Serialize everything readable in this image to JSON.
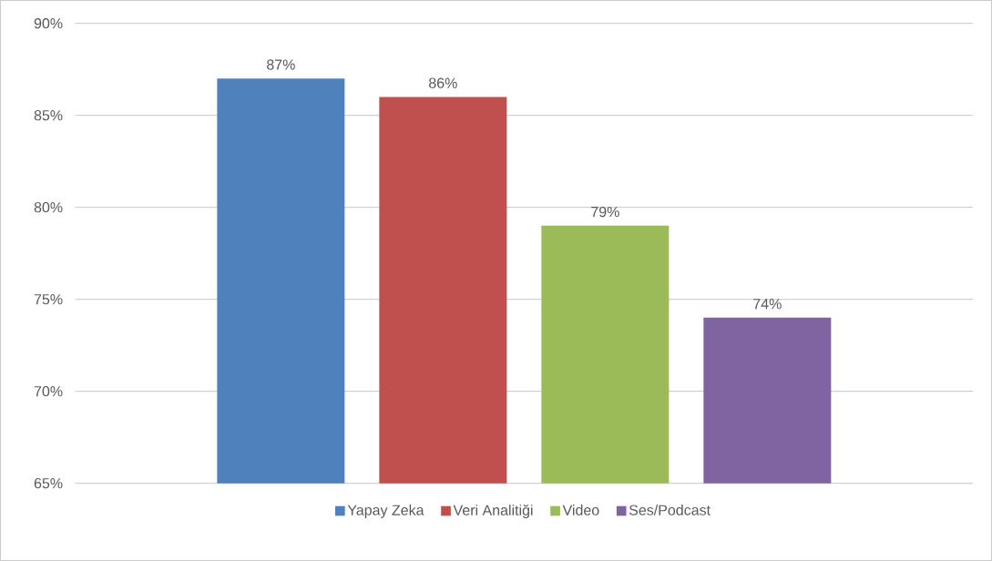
{
  "chart_data": {
    "type": "bar",
    "categories": [
      null
    ],
    "series": [
      {
        "name": "Yapay Zeka",
        "color": "#4f81bd",
        "values": [
          87
        ],
        "value_labels": [
          "87%"
        ]
      },
      {
        "name": "Veri Analitiği",
        "color": "#c0504d",
        "values": [
          86
        ],
        "value_labels": [
          "86%"
        ]
      },
      {
        "name": "Video",
        "color": "#9bbb59",
        "values": [
          79
        ],
        "value_labels": [
          "79%"
        ]
      },
      {
        "name": "Ses/Podcast",
        "color": "#8064a2",
        "values": [
          74
        ],
        "value_labels": [
          "74%"
        ]
      }
    ],
    "ylim": [
      65,
      90
    ],
    "yticks": [
      {
        "value": 65,
        "label": "65%"
      },
      {
        "value": 70,
        "label": "70%"
      },
      {
        "value": 75,
        "label": "75%"
      },
      {
        "value": 80,
        "label": "80%"
      },
      {
        "value": 85,
        "label": "85%"
      },
      {
        "value": 90,
        "label": "90%"
      }
    ],
    "grid": "y",
    "legend": "bottom"
  }
}
